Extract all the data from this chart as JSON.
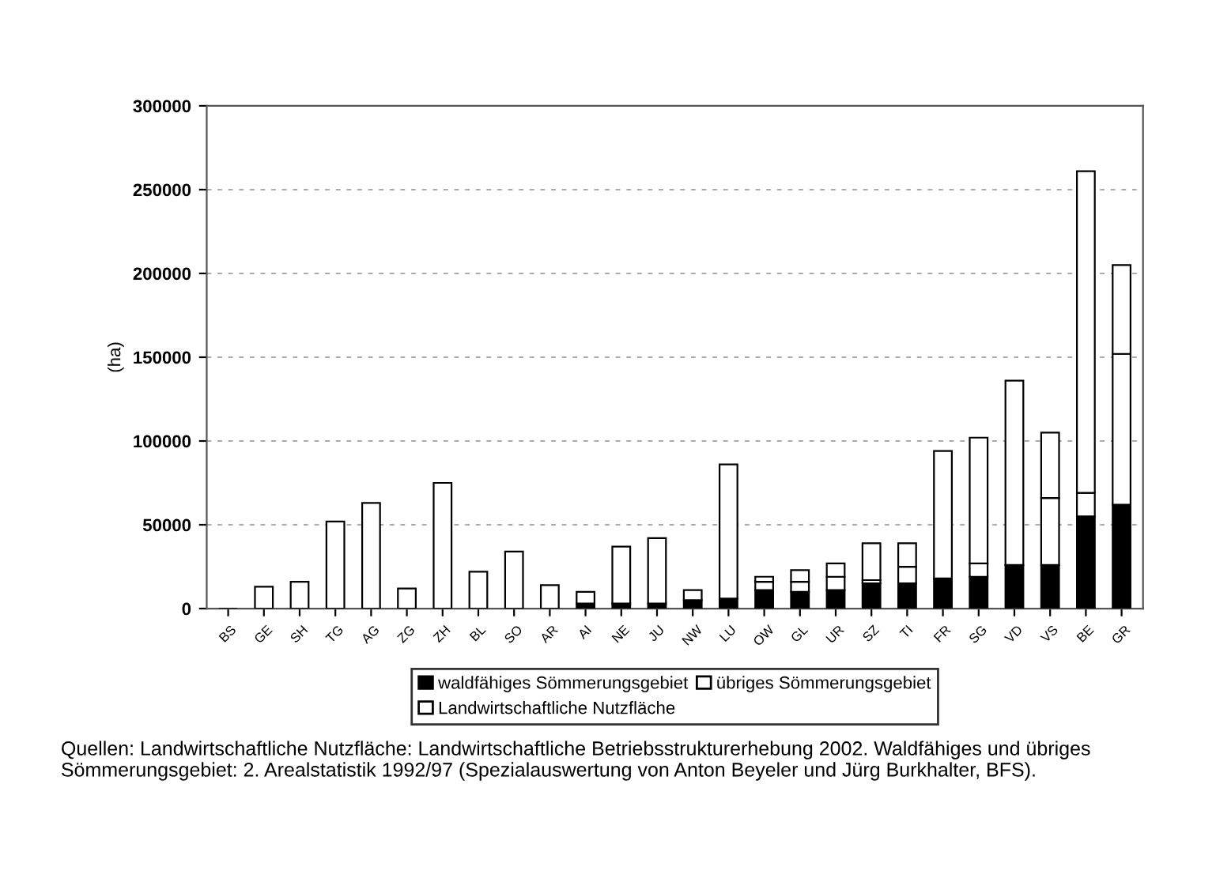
{
  "chart_data": {
    "type": "bar",
    "stacked": true,
    "ylabel": "(ha)",
    "categories": [
      "BS",
      "GE",
      "SH",
      "TG",
      "AG",
      "ZG",
      "ZH",
      "BL",
      "SO",
      "AR",
      "AI",
      "NE",
      "JU",
      "NW",
      "LU",
      "OW",
      "GL",
      "UR",
      "SZ",
      "TI",
      "FR",
      "SG",
      "VD",
      "VS",
      "BE",
      "GR"
    ],
    "series": [
      {
        "name": "waldfähiges Sömmerungsgebiet",
        "color": "#000000",
        "values": [
          0,
          0,
          0,
          0,
          0,
          0,
          0,
          0,
          0,
          0,
          3000,
          3000,
          3000,
          5000,
          6000,
          11000,
          10000,
          11000,
          15000,
          15000,
          18000,
          19000,
          26000,
          26000,
          55000,
          62000
        ]
      },
      {
        "name": "übriges Sömmerungsgebiet",
        "color": "#ffffff",
        "values": [
          0,
          0,
          0,
          0,
          0,
          0,
          0,
          0,
          0,
          0,
          0,
          0,
          0,
          0,
          0,
          5000,
          6000,
          8000,
          2000,
          10000,
          null,
          8000,
          null,
          40000,
          14000,
          90000
        ]
      },
      {
        "name": "Landwirtschaftliche Nutzfläche",
        "color": "#ffffff",
        "values": [
          0,
          13000,
          16000,
          52000,
          63000,
          12000,
          75000,
          22000,
          34000,
          14000,
          7000,
          34000,
          39000,
          6000,
          80000,
          3000,
          7000,
          8000,
          22000,
          14000,
          76000,
          75000,
          110000,
          39000,
          192000,
          53000
        ]
      }
    ],
    "ylim": [
      0,
      300000
    ],
    "yticks": [
      0,
      50000,
      100000,
      150000,
      200000,
      250000,
      300000
    ],
    "grid": "y",
    "legend": "bottom",
    "annotations": [
      "Quellen: Landwirtschaftliche Nutzfläche: Landwirtschaftliche Betriebsstrukturerhebung 2002. Waldfähiges und übriges Sömmerungsgebiet: 2. Arealstatistik 1992/97 (Spezialauswertung von Anton Beyeler und Jürg Burkhalter, BFS)."
    ]
  }
}
